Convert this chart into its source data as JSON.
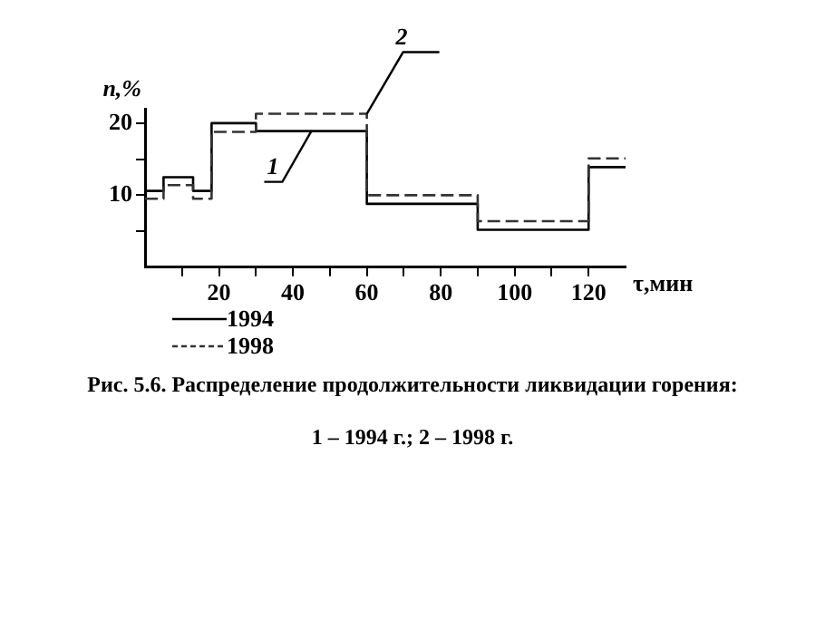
{
  "chart_data": {
    "type": "histogram",
    "xlabel": "τ,мин",
    "ylabel": "n,%",
    "bins": [
      0,
      5,
      13,
      18,
      30,
      60,
      90,
      120,
      130
    ],
    "series": [
      {
        "name": "1994",
        "color": "#000000",
        "line_style": "solid",
        "values": [
          10.6,
          12.5,
          10.6,
          20,
          18.9,
          8.8,
          5.2,
          13.9
        ]
      },
      {
        "name": "1998",
        "color": "#333333",
        "line_style": "dashed",
        "values": [
          9.5,
          11.4,
          9.5,
          18.8,
          21.3,
          10,
          6.4,
          15.1
        ]
      }
    ],
    "xlim": [
      0,
      130
    ],
    "xticks": [
      {
        "value": 10,
        "label": null
      },
      20,
      {
        "value": 30,
        "label": null
      },
      40,
      {
        "value": 50,
        "label": null
      },
      60,
      {
        "value": 70,
        "label": null
      },
      80,
      {
        "value": 90,
        "label": null
      },
      100,
      {
        "value": 110,
        "label": null
      },
      120
    ],
    "ylim": [
      0,
      22
    ],
    "yticks": [
      {
        "value": 5,
        "label": null
      },
      10,
      {
        "value": 15,
        "label": null
      },
      20
    ],
    "grid": false,
    "legend": "bottom left",
    "annotations": [
      {
        "text": "1",
        "x": 45,
        "y": 18.9
      },
      {
        "text": "2",
        "x": 60,
        "y": 21.3
      },
      "Рис. 5.6. Распределение продолжительности ликвидации горения:",
      "1 – 1994 г.; 2 – 1998 г."
    ]
  }
}
